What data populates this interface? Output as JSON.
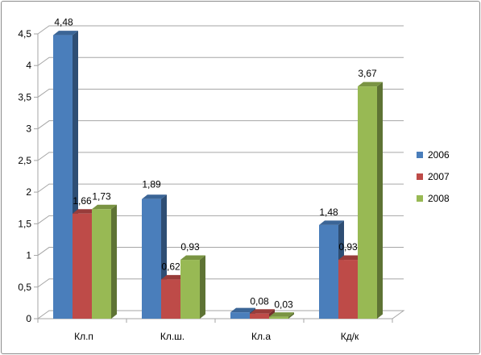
{
  "chart_data": {
    "type": "bar",
    "categories": [
      "Кл.п",
      "Кл.ш.",
      "Кл.а",
      "Кд/к"
    ],
    "series": [
      {
        "name": "2006",
        "values": [
          4.48,
          1.89,
          0.1,
          1.48
        ],
        "labels": [
          "4,48",
          "1,89",
          "",
          "1,48"
        ],
        "color": "#4a7ebb"
      },
      {
        "name": "2007",
        "values": [
          1.66,
          0.62,
          0.08,
          0.93
        ],
        "labels": [
          "1,66",
          "0,62",
          "0,08",
          "0,93"
        ],
        "color": "#be4b48"
      },
      {
        "name": "2008",
        "values": [
          1.73,
          0.93,
          0.03,
          3.67
        ],
        "labels": [
          "1,73",
          "0,93",
          "0,03",
          "3,67"
        ],
        "color": "#98b954"
      }
    ],
    "yticks": [
      0,
      0.5,
      1,
      1.5,
      2,
      2.5,
      3,
      3.5,
      4,
      4.5
    ],
    "ytick_labels": [
      "0",
      "0,5",
      "1",
      "1,5",
      "2",
      "2,5",
      "3",
      "3,5",
      "4",
      "4,5"
    ],
    "ylim": [
      0,
      4.5
    ],
    "grid": true,
    "legend_position": "right",
    "title": "",
    "xlabel": "",
    "ylabel": ""
  }
}
